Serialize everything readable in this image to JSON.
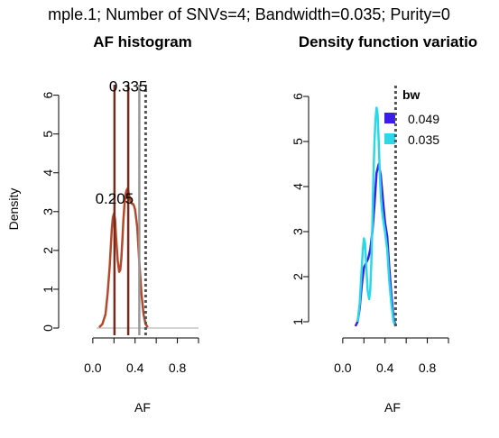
{
  "figure_title": "mple.1; Number of SNVs=4; Bandwidth=0.035; Purity=0",
  "chart_data": [
    {
      "type": "line",
      "title": "AF histogram",
      "xlabel": "AF",
      "ylabel": "Density",
      "xlim": [
        -0.05,
        1.0
      ],
      "ylim": [
        0,
        6.2
      ],
      "xticks": [
        "0.0",
        "0.4",
        "0.8"
      ],
      "xtick_values": [
        0.0,
        0.4,
        0.8
      ],
      "yticks": [
        "0",
        "1",
        "2",
        "3",
        "4",
        "5",
        "6"
      ],
      "ytick_values": [
        0,
        1,
        2,
        3,
        4,
        5,
        6
      ],
      "grid": false,
      "series": [
        {
          "color": "#b5482b",
          "x": [
            0.06,
            0.09,
            0.12,
            0.14,
            0.16,
            0.17,
            0.18,
            0.19,
            0.2,
            0.21,
            0.22,
            0.235,
            0.25,
            0.26,
            0.27,
            0.28,
            0.29,
            0.3,
            0.31,
            0.32,
            0.33,
            0.335,
            0.34,
            0.35,
            0.36,
            0.37,
            0.38,
            0.39,
            0.4,
            0.42,
            0.44,
            0.46,
            0.48,
            0.5,
            0.52
          ],
          "y": [
            0.02,
            0.1,
            0.35,
            0.9,
            1.6,
            2.1,
            2.55,
            2.85,
            2.95,
            2.8,
            2.35,
            1.75,
            1.45,
            1.5,
            1.8,
            2.3,
            2.8,
            3.2,
            3.45,
            3.55,
            3.6,
            3.55,
            3.45,
            3.35,
            3.25,
            3.2,
            3.2,
            3.15,
            3.05,
            2.6,
            1.7,
            0.9,
            0.35,
            0.1,
            0.02
          ]
        }
      ],
      "vlines": [
        {
          "x": 0.205,
          "color": "#7a2a1a",
          "style": "solid"
        },
        {
          "x": 0.335,
          "color": "#7a2a1a",
          "style": "solid"
        },
        {
          "x": 0.44,
          "color": "#999999",
          "style": "solid"
        },
        {
          "x": 0.5,
          "color": "#555555",
          "style": "dotted"
        }
      ],
      "baseline": {
        "y": 0,
        "color": "#aaaaaa"
      },
      "annotations": [
        {
          "text": "0.205",
          "x": 0.205,
          "y": 3.2
        },
        {
          "text": "0.335",
          "x": 0.335,
          "y": 6.1
        }
      ]
    },
    {
      "type": "line",
      "title": "Density function variatio",
      "xlabel": "AF",
      "ylabel": "",
      "xlim": [
        -0.05,
        1.0
      ],
      "ylim": [
        0.9,
        6.2
      ],
      "xticks": [
        "0.0",
        "0.4",
        "0.8"
      ],
      "xtick_values": [
        0.0,
        0.4,
        0.8
      ],
      "yticks": [
        "1",
        "2",
        "3",
        "4",
        "5",
        "6"
      ],
      "ytick_values": [
        1,
        2,
        3,
        4,
        5,
        6
      ],
      "grid": false,
      "legend": {
        "title": "bw",
        "position": "top-right"
      },
      "series": [
        {
          "name": "0.049",
          "color": "#3a1ee8",
          "x": [
            0.12,
            0.14,
            0.16,
            0.18,
            0.2,
            0.22,
            0.24,
            0.26,
            0.28,
            0.3,
            0.32,
            0.34,
            0.36,
            0.38,
            0.4,
            0.42,
            0.44,
            0.46,
            0.48,
            0.5
          ],
          "y": [
            0.9,
            1.0,
            1.3,
            1.8,
            2.2,
            2.3,
            2.4,
            2.6,
            3.0,
            3.6,
            4.3,
            4.5,
            4.25,
            3.7,
            3.2,
            2.9,
            2.2,
            1.6,
            1.1,
            0.9
          ]
        },
        {
          "name": "0.035",
          "color": "#2ad8e8",
          "x": [
            0.14,
            0.16,
            0.18,
            0.19,
            0.2,
            0.21,
            0.22,
            0.235,
            0.25,
            0.26,
            0.27,
            0.28,
            0.29,
            0.3,
            0.31,
            0.32,
            0.33,
            0.34,
            0.35,
            0.36,
            0.37,
            0.38,
            0.4,
            0.42,
            0.44,
            0.46,
            0.48,
            0.5
          ],
          "y": [
            1.0,
            1.4,
            2.2,
            2.6,
            2.85,
            2.75,
            2.35,
            1.7,
            1.5,
            1.7,
            2.3,
            3.2,
            4.2,
            5.0,
            5.5,
            5.75,
            5.6,
            5.0,
            4.3,
            3.8,
            3.5,
            3.3,
            3.0,
            2.6,
            1.9,
            1.4,
            1.0,
            0.9
          ]
        }
      ],
      "vlines": [
        {
          "x": 0.5,
          "color": "#555555",
          "style": "dotted"
        }
      ]
    }
  ]
}
